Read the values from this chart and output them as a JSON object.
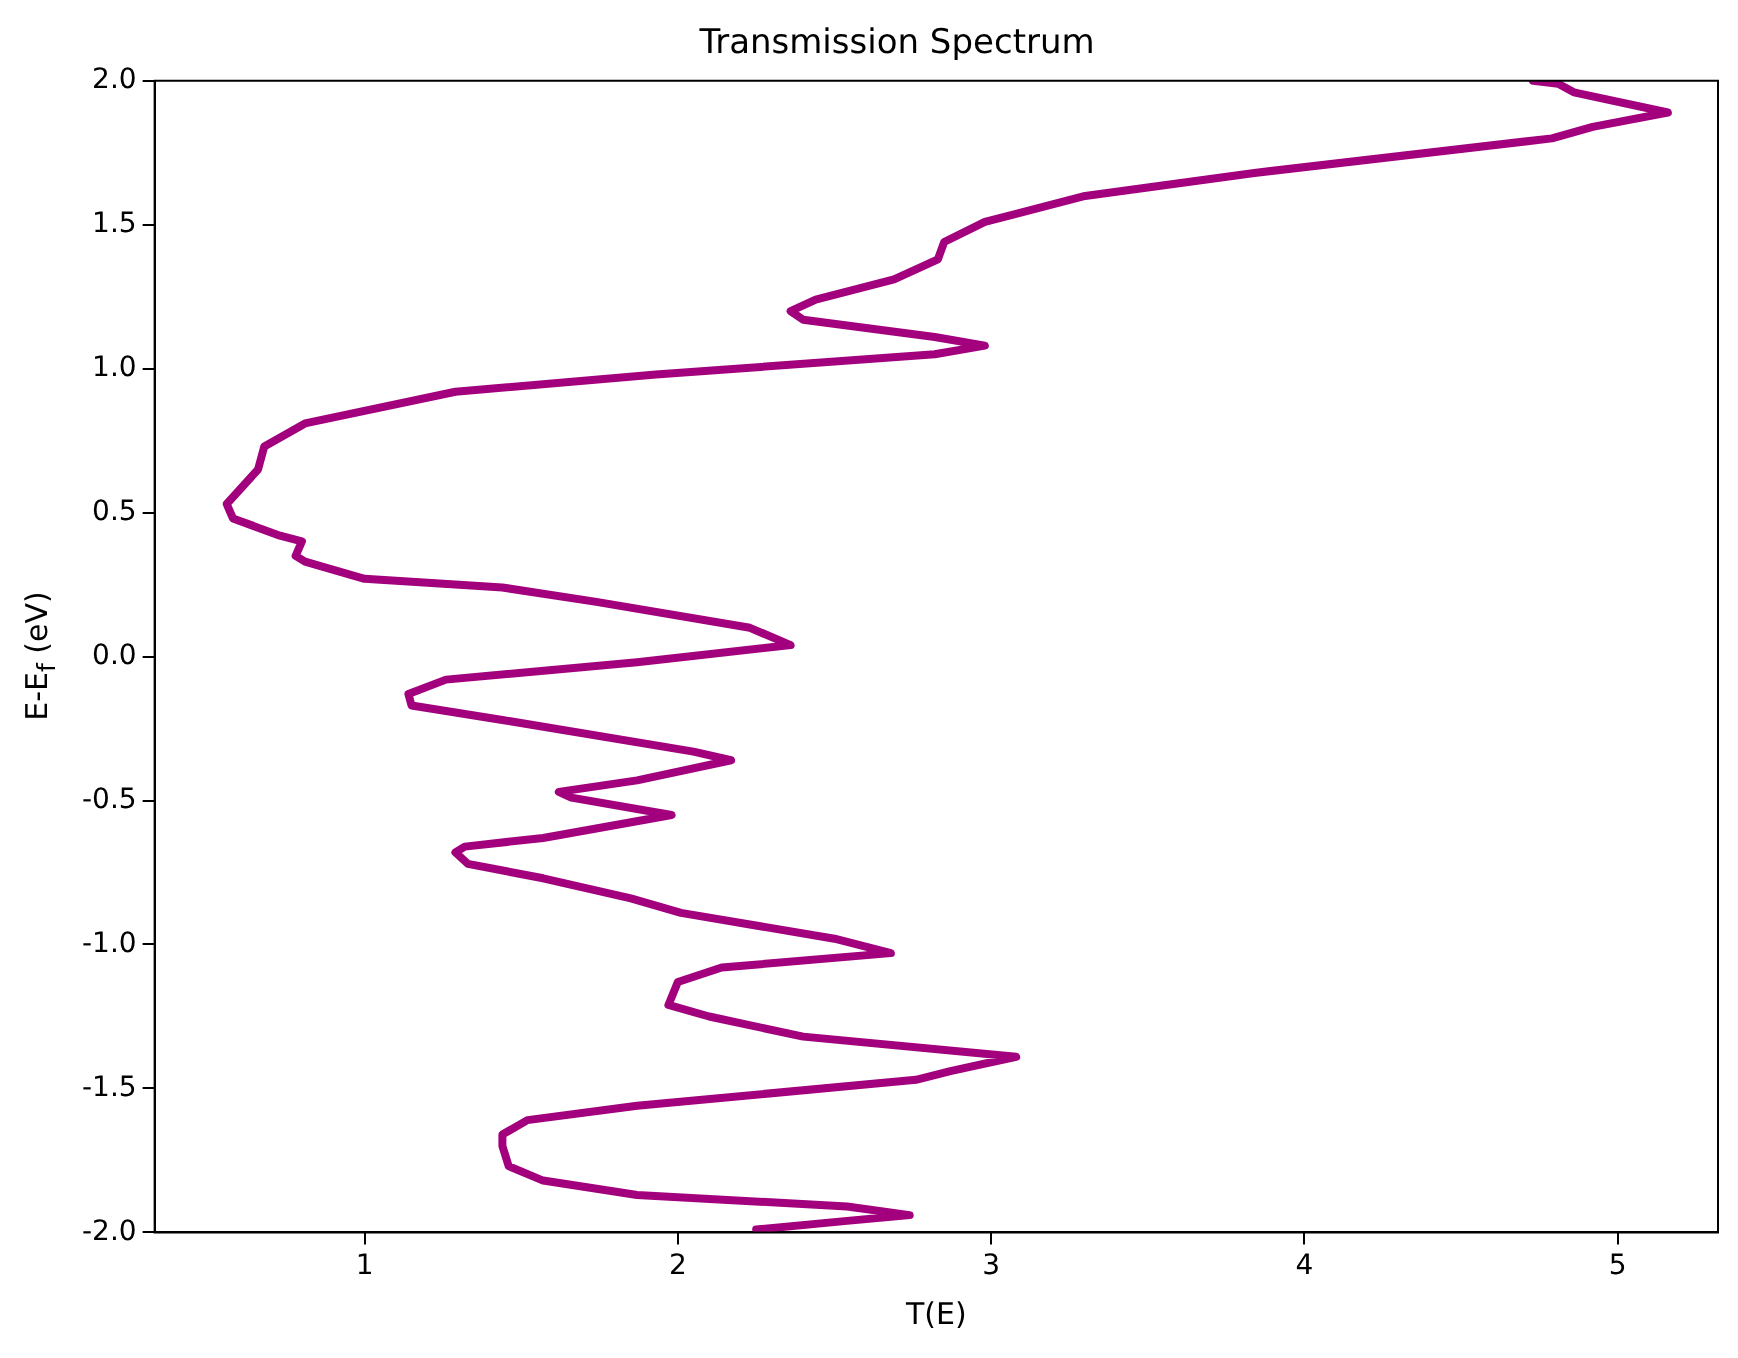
{
  "chart_data": {
    "type": "line",
    "title": "Transmission Spectrum",
    "xlabel": "T(E)",
    "ylabel": "E-E$_{f}$ (eV)",
    "xlim": [
      0.33,
      5.32
    ],
    "xticks": [
      1,
      2,
      3,
      4,
      5
    ],
    "ylim": [
      -2.0,
      2.0
    ],
    "yticks": [
      {
        "value": -2,
        "label": "-2.0"
      },
      {
        "value": -1.5,
        "label": "-1.5"
      },
      {
        "value": -1,
        "label": "-1.0"
      },
      {
        "value": -0.5,
        "label": "-0.5"
      },
      {
        "value": 0,
        "label": "0.0"
      },
      {
        "value": 0.5,
        "label": "0.5"
      },
      {
        "value": 1,
        "label": "1.0"
      },
      {
        "value": 1.5,
        "label": "1.5"
      },
      {
        "value": 2,
        "label": "2.0"
      }
    ],
    "grid": false,
    "legend": false,
    "marker": "none",
    "line_style": "solid",
    "series": [
      {
        "color": "#a3007e",
        "x": [
          2.25,
          2.54,
          2.74,
          2.54,
          1.87,
          1.57,
          1.46,
          1.44,
          1.44,
          1.52,
          1.87,
          2.76,
          2.87,
          3.08,
          2.4,
          2.1,
          1.97,
          2.0,
          2.14,
          2.68,
          2.5,
          2.01,
          1.85,
          1.57,
          1.33,
          1.29,
          1.32,
          1.57,
          1.98,
          1.66,
          1.62,
          1.87,
          2.17,
          2.05,
          1.44,
          1.15,
          1.14,
          1.26,
          1.87,
          2.36,
          2.23,
          1.74,
          1.44,
          1.0,
          0.81,
          0.78,
          0.8,
          0.73,
          0.58,
          0.56,
          0.61,
          0.66,
          0.68,
          0.81,
          1.29,
          1.93,
          2.82,
          2.98,
          2.82,
          2.4,
          2.36,
          2.44,
          2.69,
          2.83,
          2.85,
          2.98,
          3.3,
          3.84,
          4.79,
          4.92,
          5.16,
          4.86,
          4.81,
          4.73
        ],
        "values": [
          -1.99,
          -1.96,
          -1.94,
          -1.91,
          -1.87,
          -1.82,
          -1.77,
          -1.7,
          -1.66,
          -1.61,
          -1.56,
          -1.47,
          -1.44,
          -1.39,
          -1.32,
          -1.25,
          -1.21,
          -1.13,
          -1.08,
          -1.03,
          -0.98,
          -0.89,
          -0.84,
          -0.77,
          -0.72,
          -0.68,
          -0.66,
          -0.63,
          -0.55,
          -0.49,
          -0.47,
          -0.43,
          -0.36,
          -0.33,
          -0.22,
          -0.17,
          -0.13,
          -0.08,
          -0.02,
          0.04,
          0.1,
          0.19,
          0.24,
          0.27,
          0.33,
          0.35,
          0.4,
          0.42,
          0.48,
          0.53,
          0.59,
          0.65,
          0.73,
          0.81,
          0.92,
          0.98,
          1.05,
          1.08,
          1.11,
          1.17,
          1.2,
          1.24,
          1.31,
          1.38,
          1.44,
          1.51,
          1.6,
          1.68,
          1.8,
          1.84,
          1.89,
          1.96,
          1.99,
          2.0
        ]
      }
    ]
  }
}
